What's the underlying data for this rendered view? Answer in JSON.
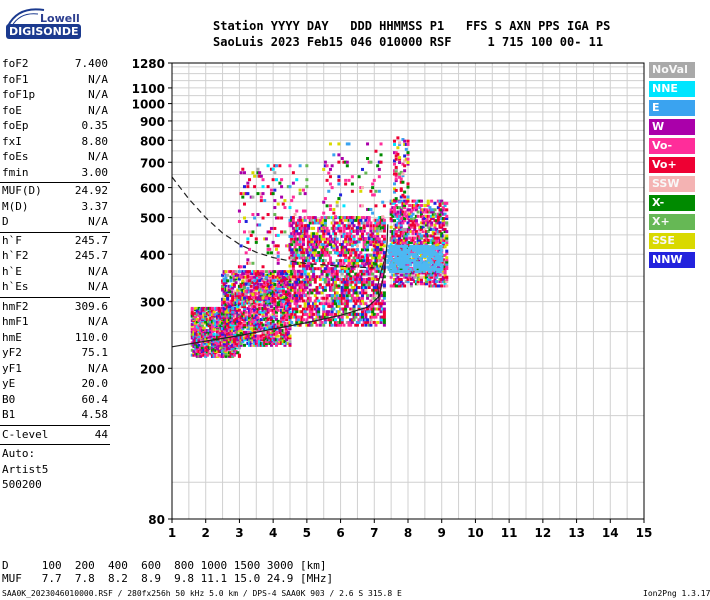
{
  "logo": {
    "line1": "Lowell",
    "line2": "DIGISONDE"
  },
  "header": {
    "row1": "Station YYYY DAY   DDD HHMMSS P1   FFS S AXN PPS IGA PS",
    "row2": "SaoLuis 2023 Feb15 046 010000 RSF     1 715 100 00- 11"
  },
  "params": {
    "group1": [
      {
        "name": "foF2",
        "value": "7.400"
      },
      {
        "name": "foF1",
        "value": "N/A"
      },
      {
        "name": "foF1p",
        "value": "N/A"
      },
      {
        "name": "foE",
        "value": "N/A"
      },
      {
        "name": "foEp",
        "value": "0.35"
      },
      {
        "name": "fxI",
        "value": "8.80"
      },
      {
        "name": "foEs",
        "value": "N/A"
      },
      {
        "name": "fmin",
        "value": "3.00"
      }
    ],
    "group2": [
      {
        "name": "MUF(D)",
        "value": "24.92"
      },
      {
        "name": "M(D)",
        "value": "3.37"
      },
      {
        "name": "D",
        "value": "N/A"
      }
    ],
    "group3": [
      {
        "name": "h`F",
        "value": "245.7"
      },
      {
        "name": "h`F2",
        "value": "245.7"
      },
      {
        "name": "h`E",
        "value": "N/A"
      },
      {
        "name": "h`Es",
        "value": "N/A"
      }
    ],
    "group4": [
      {
        "name": "hmF2",
        "value": "309.6"
      },
      {
        "name": "hmF1",
        "value": "N/A"
      },
      {
        "name": "hmE",
        "value": "110.0"
      },
      {
        "name": "yF2",
        "value": "75.1"
      },
      {
        "name": "yF1",
        "value": "N/A"
      },
      {
        "name": "yE",
        "value": "20.0"
      },
      {
        "name": "B0",
        "value": "60.4"
      },
      {
        "name": "B1",
        "value": "4.58"
      }
    ],
    "clevel": {
      "name": "C-level",
      "value": "44"
    },
    "auto": [
      "Auto:",
      "Artist5",
      "500200"
    ]
  },
  "legend": [
    {
      "label": "NoVal",
      "color": "#a9a9a9"
    },
    {
      "label": "NNE",
      "color": "#00e5ff"
    },
    {
      "label": "E",
      "color": "#3aa3f0"
    },
    {
      "label": "W",
      "color": "#aa00aa"
    },
    {
      "label": "Vo-",
      "color": "#ff2d9a"
    },
    {
      "label": "Vo+",
      "color": "#ee0033"
    },
    {
      "label": "SSW",
      "color": "#f4b3b3"
    },
    {
      "label": "X-",
      "color": "#008a00"
    },
    {
      "label": "X+",
      "color": "#66b855"
    },
    {
      "label": "SSE",
      "color": "#d9d900"
    },
    {
      "label": "NNW",
      "color": "#2222dd"
    }
  ],
  "muf_table": {
    "d_row": "D     100  200  400  600  800 1000 1500 3000 [km]",
    "muf_row": "MUF   7.7  7.8  8.2  8.9  9.8 11.1 15.0 24.9 [MHz]"
  },
  "footer": {
    "left": "SAA0K_2023046010000.RSF / 280fx256h 50 kHz 5.0 km / DPS-4 SAA0K 903 / 2.6 S 315.8 E",
    "right": "Ion2Png 1.3.17"
  },
  "chart_data": {
    "type": "scatter",
    "title": "",
    "xlabel": "",
    "ylabel": "",
    "xlim": [
      1,
      15
    ],
    "ylim": [
      80,
      1280
    ],
    "y_scale": "log",
    "x_ticks": [
      "1",
      "2",
      "3",
      "4",
      "5",
      "6",
      "7",
      "8",
      "9",
      "10",
      "11",
      "12",
      "13",
      "14",
      "15"
    ],
    "y_ticks": [
      80,
      200,
      300,
      400,
      500,
      600,
      700,
      800,
      900,
      1000,
      1100,
      1280
    ],
    "grid": true,
    "legend_position": "right",
    "echo_regions": [
      {
        "x_range": [
          1.6,
          3.0
        ],
        "y_range": [
          215,
          290
        ],
        "density": 0.55
      },
      {
        "x_range": [
          2.5,
          4.5
        ],
        "y_range": [
          230,
          360
        ],
        "density": 0.6
      },
      {
        "x_range": [
          3.0,
          5.0
        ],
        "y_range": [
          300,
          700
        ],
        "density": 0.12
      },
      {
        "x_range": [
          4.5,
          7.3
        ],
        "y_range": [
          260,
          500
        ],
        "density": 0.55
      },
      {
        "x_range": [
          5.5,
          7.3
        ],
        "y_range": [
          330,
          800
        ],
        "density": 0.1
      },
      {
        "x_range": [
          7.5,
          9.2
        ],
        "y_range": [
          330,
          560
        ],
        "density": 0.55
      },
      {
        "x_range": [
          7.6,
          8.0
        ],
        "y_range": [
          550,
          820
        ],
        "density": 0.15
      }
    ],
    "curves": [
      {
        "name": "",
        "style": "dashed",
        "points": [
          [
            1.0,
            640
          ],
          [
            1.5,
            560
          ],
          [
            2.0,
            500
          ],
          [
            2.5,
            455
          ],
          [
            3.0,
            425
          ],
          [
            3.5,
            405
          ],
          [
            4.0,
            392
          ],
          [
            4.5,
            384
          ],
          [
            5.0,
            378
          ],
          [
            6.0,
            372
          ],
          [
            7.0,
            368
          ]
        ]
      },
      {
        "name": "",
        "style": "solid",
        "points": [
          [
            1.0,
            228
          ],
          [
            2.0,
            236
          ],
          [
            3.0,
            244
          ],
          [
            4.0,
            254
          ],
          [
            5.0,
            264
          ],
          [
            6.0,
            276
          ],
          [
            6.8,
            290
          ],
          [
            7.15,
            310
          ],
          [
            7.3,
            360
          ],
          [
            7.38,
            430
          ],
          [
            7.4,
            480
          ]
        ]
      },
      {
        "name": "",
        "style": "solid-thin",
        "points": [
          [
            7.15,
            300
          ],
          [
            7.1,
            330
          ],
          [
            7.2,
            360
          ],
          [
            7.35,
            400
          ]
        ]
      }
    ]
  }
}
